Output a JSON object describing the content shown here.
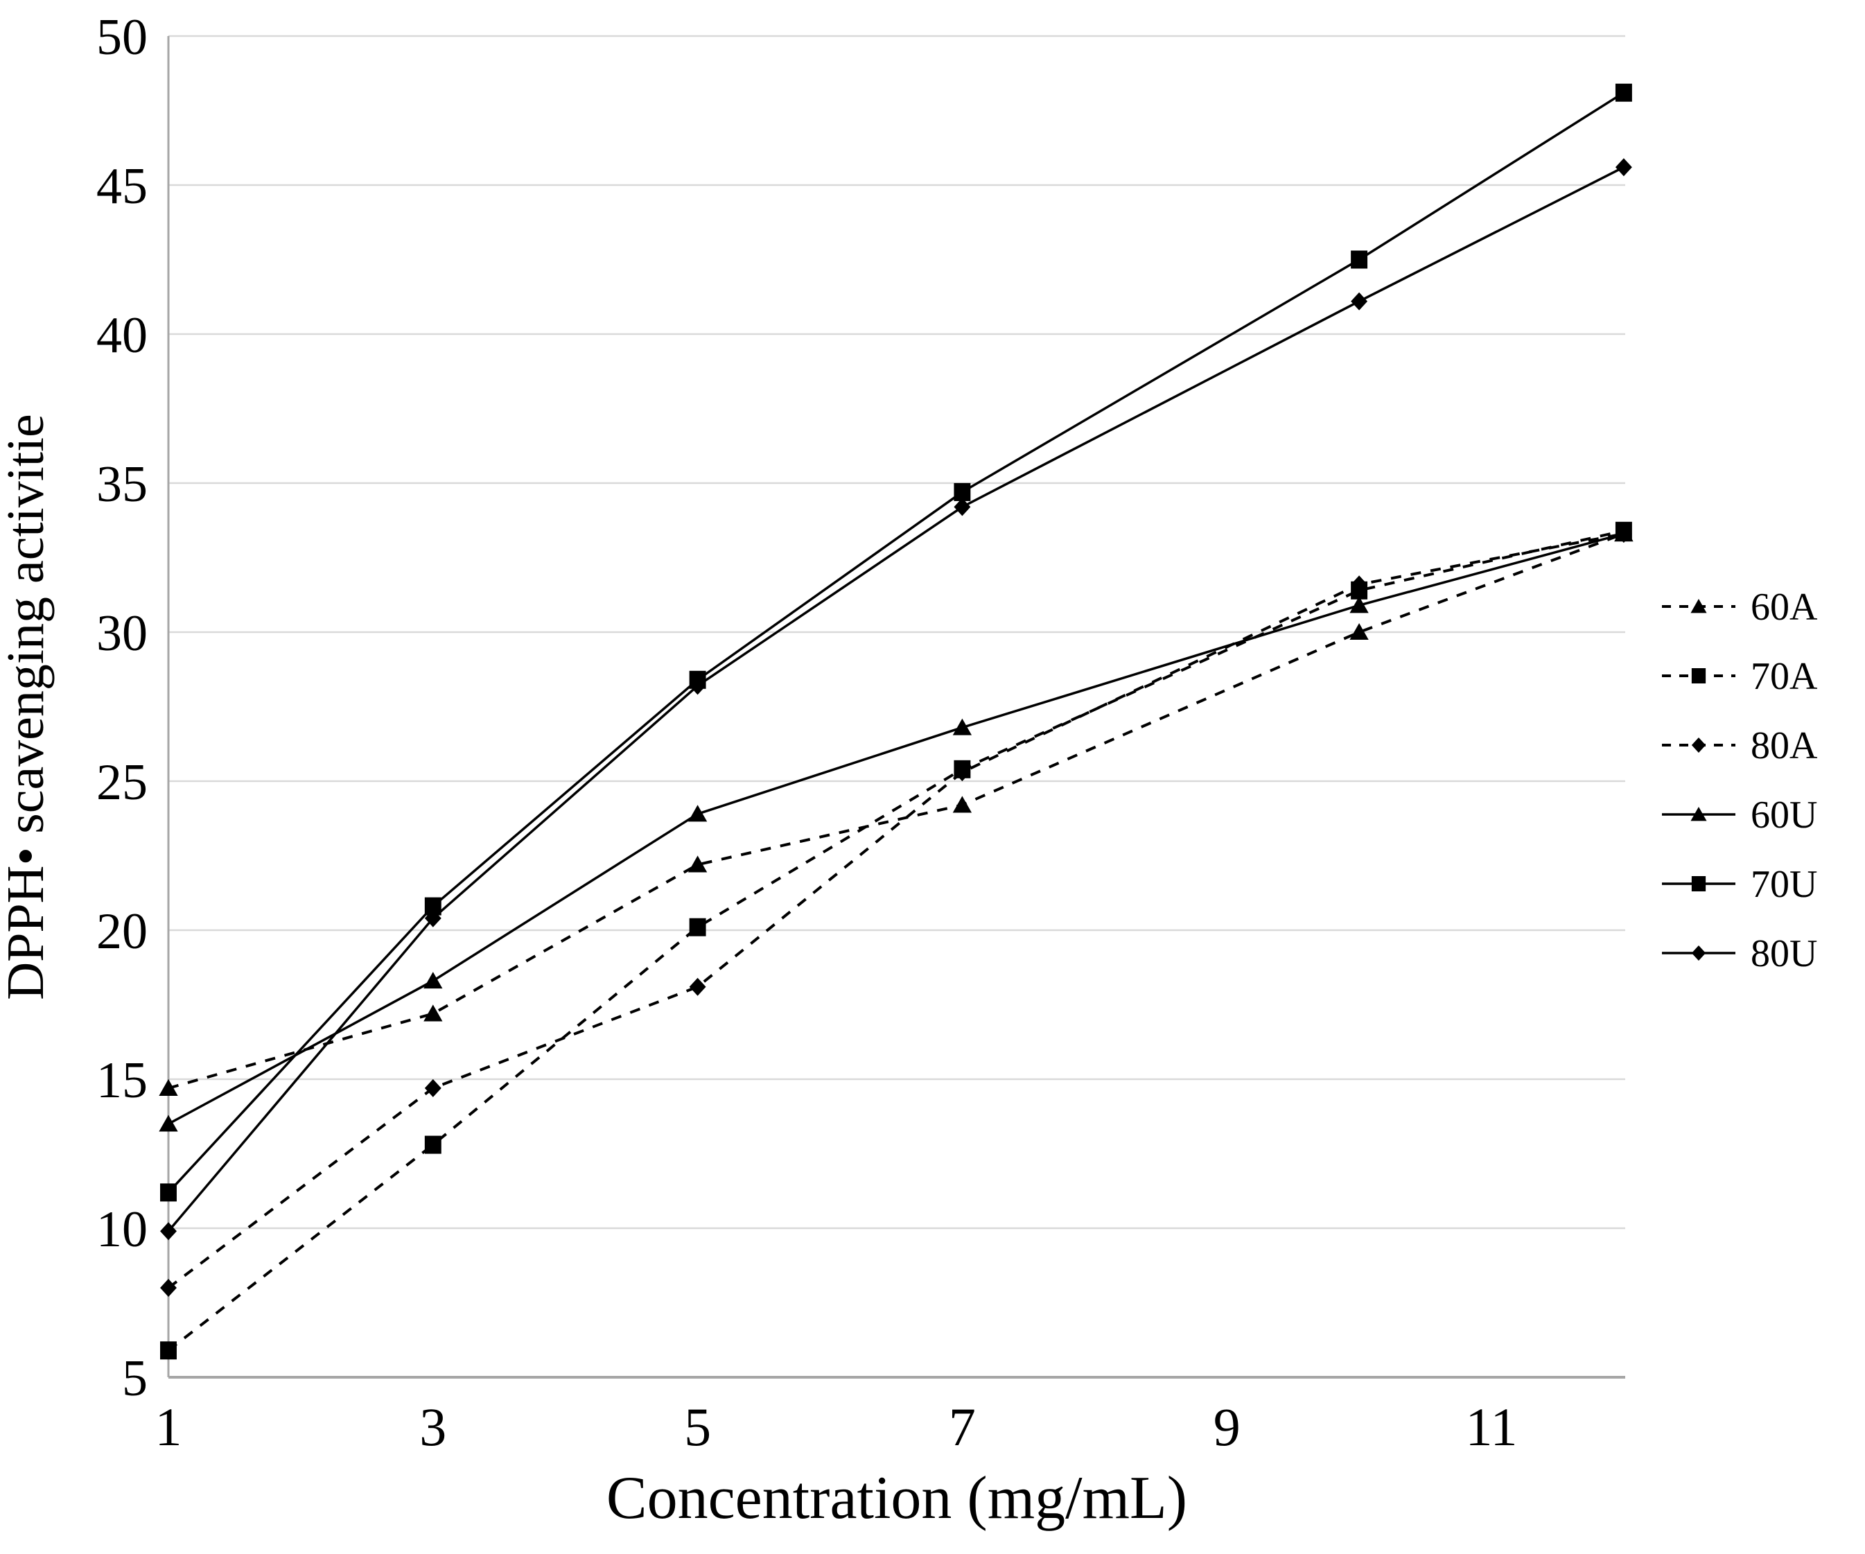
{
  "chart_data": {
    "type": "line",
    "title": "",
    "xlabel": "Concentration (mg/mL)",
    "ylabel": "DPPH• scavenging activitie",
    "x": [
      1,
      3,
      5,
      7,
      10,
      12
    ],
    "x_tick_labels": [
      "1",
      "3",
      "5",
      "7",
      "9",
      "11"
    ],
    "y_ticks": [
      "5",
      "10",
      "15",
      "20",
      "25",
      "30",
      "35",
      "40",
      "45",
      "50"
    ],
    "ylim": [
      5,
      50
    ],
    "xlim": [
      1,
      12.1
    ],
    "grid": "horizontal",
    "legend_position": "right",
    "series": [
      {
        "name": "60A",
        "marker": "triangle",
        "line": "dashed",
        "values": [
          14.7,
          17.2,
          22.2,
          24.2,
          30.0,
          33.3
        ]
      },
      {
        "name": "70A",
        "marker": "square",
        "line": "dashed",
        "values": [
          5.9,
          12.8,
          20.1,
          25.4,
          31.4,
          33.4
        ]
      },
      {
        "name": "80A",
        "marker": "diamond",
        "line": "dashed",
        "values": [
          8.0,
          14.7,
          18.1,
          25.3,
          31.6,
          33.3
        ]
      },
      {
        "name": "60U",
        "marker": "triangle",
        "line": "solid",
        "values": [
          13.5,
          18.3,
          23.9,
          26.8,
          30.9,
          33.3
        ]
      },
      {
        "name": "70U",
        "marker": "square",
        "line": "solid",
        "values": [
          11.2,
          20.8,
          28.4,
          34.7,
          42.5,
          48.1
        ]
      },
      {
        "name": "80U",
        "marker": "diamond",
        "line": "solid",
        "values": [
          9.9,
          20.4,
          28.2,
          34.2,
          41.1,
          45.6
        ]
      }
    ],
    "colors": {
      "line": "#000000",
      "marker": "#000000",
      "gridline": "#d9d9d9",
      "axis": "#a6a6a6",
      "background": "#ffffff",
      "text": "#000000"
    }
  }
}
